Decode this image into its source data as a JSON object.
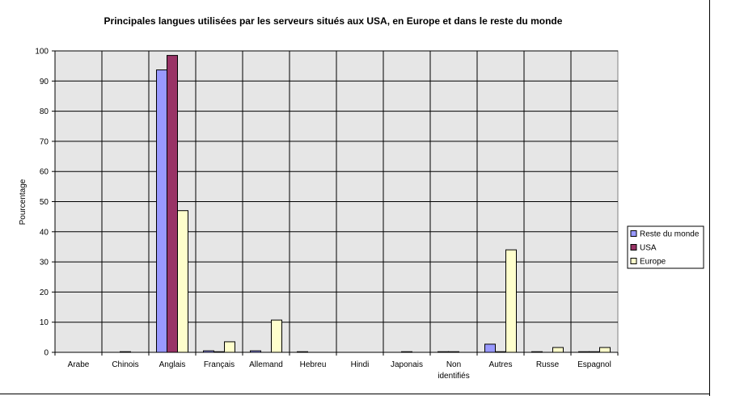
{
  "chart_data": {
    "type": "bar",
    "title": "Principales langues utilisées par les serveurs situés aux USA, en Europe et dans le reste du monde",
    "xlabel": "",
    "ylabel": "Pourcentage",
    "ylim": [
      0,
      100
    ],
    "yticks": [
      0,
      10,
      20,
      30,
      40,
      50,
      60,
      70,
      80,
      90,
      100
    ],
    "grid": true,
    "legend_position": "right",
    "categories": [
      "Arabe",
      "Chinois",
      "Anglais",
      "Français",
      "Allemand",
      "Hebreu",
      "Hindi",
      "Japonais",
      "Non identifiés",
      "Autres",
      "Russe",
      "Espagnol"
    ],
    "series": [
      {
        "name": "Reste du monde",
        "color": "#9999ff",
        "values": [
          0,
          0,
          93.7,
          0.5,
          0.5,
          0.2,
          0,
          0,
          0.2,
          2.7,
          0.2,
          0.2
        ]
      },
      {
        "name": "USA",
        "color": "#993366",
        "values": [
          0,
          0.2,
          98.5,
          0.2,
          0,
          0,
          0,
          0.2,
          0.2,
          0.2,
          0,
          0.2
        ]
      },
      {
        "name": "Europe",
        "color": "#ffffcc",
        "values": [
          0,
          0,
          47,
          3.5,
          10.7,
          0,
          0,
          0,
          0,
          34,
          1.6,
          1.6
        ]
      }
    ],
    "plot_background": "#e6e6e6"
  }
}
